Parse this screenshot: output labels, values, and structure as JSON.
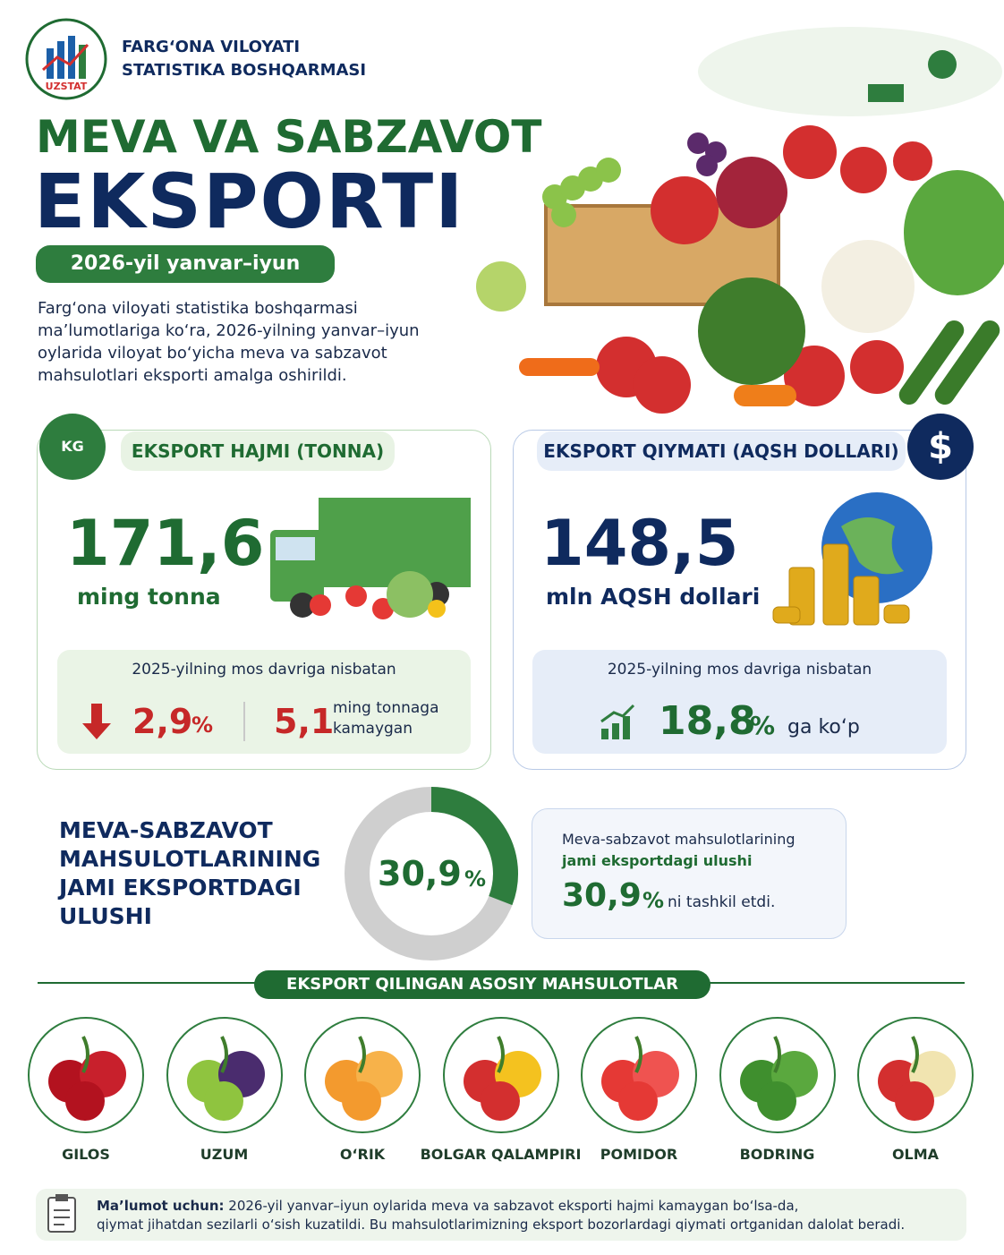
{
  "header": {
    "org": [
      "FARG‘ONA VILOYATI",
      "STATISTIKA BOSHQARMASI"
    ],
    "logo": "UZSTAT",
    "title_line1": "MEVA VA SABZAVOT",
    "title_line2": "EKSPORTI",
    "period": "2026-yil yanvar–iyun",
    "intro": [
      "Farg‘ona viloyati statistika boshqarmasi",
      "ma’lumotlariga ko‘ra, 2026-yilning yanvar–iyun",
      "oylarida viloyat bo‘yicha meva va sabzavot",
      "mahsulotlari eksporti amalga oshirildi."
    ]
  },
  "volume": {
    "title": "EKSPORT HAJMI (TONNA)",
    "icon": "KG",
    "value": "171,6",
    "unit": "ming tonna",
    "compare": "2025-yilning mos davriga nisbatan",
    "change": "2,9",
    "percent": "%",
    "abs_change": "5,1",
    "abs_note": [
      "ming tonnaga",
      "kamaygan"
    ]
  },
  "export_value": {
    "title": "EKSPORT QIYMATI (AQSH DOLLARI)",
    "icon": "$",
    "value": "148,5",
    "unit": "mln AQSH dollari",
    "compare": "2025-yilning mos davriga nisbatan",
    "change": "18,8",
    "percent": "%",
    "note": "ga ko‘p"
  },
  "share": {
    "heading": [
      "MEVA-SABZAVOT",
      "MAHSULOTLARINING",
      "JAMI EKSPORTDAGI",
      "ULUSHI"
    ],
    "donut": {
      "value": 30.9,
      "value_label": "30,9",
      "percent": "%"
    },
    "card": {
      "line1": "Meva-sabzavot mahsulotlarining",
      "line2": "jami eksportdagi ulushi",
      "value": "30,9",
      "percent": "%",
      "suffix": "ni tashkil etdi."
    }
  },
  "products": {
    "title": "EKSPORT QILINGAN ASOSIY MAHSULOTLAR",
    "items": [
      "GILOS",
      "UZUM",
      "O‘RIK",
      "BOLGAR QALAMPIRI",
      "POMIDOR",
      "BODRING",
      "OLMA"
    ]
  },
  "footer": {
    "label": "Ma’lumot uchun:",
    "text": [
      "2026-yil yanvar–iyun oylarida meva va sabzavot eksporti hajmi kamaygan bo‘lsa-da,",
      "qiymat jihatdan sezilarli o‘sish kuzatildi. Bu mahsulotlarimizning eksport bozorlardagi qiymati ortganidan dalolat beradi."
    ]
  }
}
